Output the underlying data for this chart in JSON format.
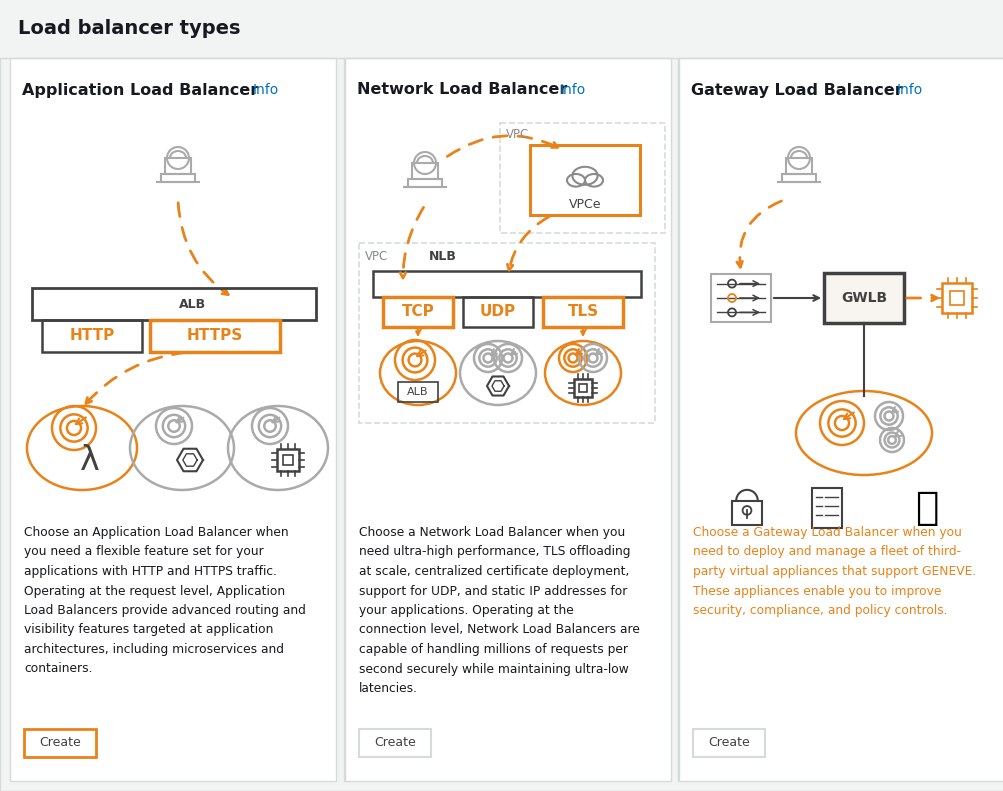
{
  "title": "Load balancer types",
  "bg_color": "#f2f3f3",
  "card_bg": "#ffffff",
  "border_color": "#d5dbdb",
  "orange": "#e8831a",
  "dark_gray": "#16191f",
  "medium_gray": "#414141",
  "gray": "#8a8a8a",
  "light_gray": "#aaaaaa",
  "blue_info": "#0073bb",
  "text_color": "#16191f",
  "card1": {
    "title": "Application Load Balancer",
    "info": "Info",
    "desc": "Choose an Application Load Balancer when\nyou need a flexible feature set for your\napplications with HTTP and HTTPS traffic.\nOperating at the request level, Application\nLoad Balancers provide advanced routing and\nvisibility features targeted at application\narchitectures, including microservices and\ncontainers.",
    "btn_border": "#e8831a"
  },
  "card2": {
    "title": "Network Load Balancer",
    "info": "Info",
    "desc": "Choose a Network Load Balancer when you\nneed ultra-high performance, TLS offloading\nat scale, centralized certificate deployment,\nsupport for UDP, and static IP addresses for\nyour applications. Operating at the\nconnection level, Network Load Balancers are\ncapable of handling millions of requests per\nsecond securely while maintaining ultra-low\nlatencies.",
    "btn_border": "#d5dbdb"
  },
  "card3": {
    "title": "Gateway Load Balancer",
    "info": "Info",
    "desc": "Choose a Gateway Load Balancer when you\nneed to deploy and manage a fleet of third-\nparty virtual appliances that support GENEVE.\nThese appliances enable you to improve\nsecurity, compliance, and policy controls.",
    "btn_border": "#d5dbdb"
  }
}
